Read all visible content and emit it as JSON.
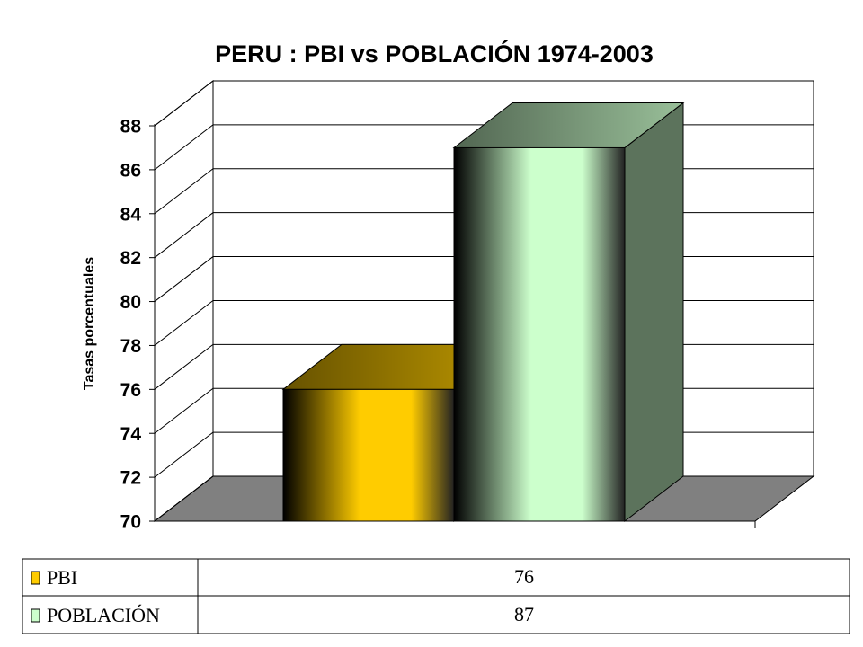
{
  "chart_data": {
    "type": "bar3d",
    "title": "PERU : PBI vs POBLACIÓN 1974-2003",
    "y_label": "Tasas porcentuales",
    "categories": [
      null
    ],
    "series": [
      {
        "name": "PBI",
        "color": "#ffcc00",
        "values": [
          76
        ]
      },
      {
        "name": "POBLACIÓN",
        "color": "#ccffcc",
        "values": [
          87
        ]
      }
    ],
    "ylim": [
      70,
      88
    ],
    "yticks": [
      70,
      72,
      74,
      76,
      78,
      80,
      82,
      84,
      86,
      88
    ],
    "grid": true
  }
}
